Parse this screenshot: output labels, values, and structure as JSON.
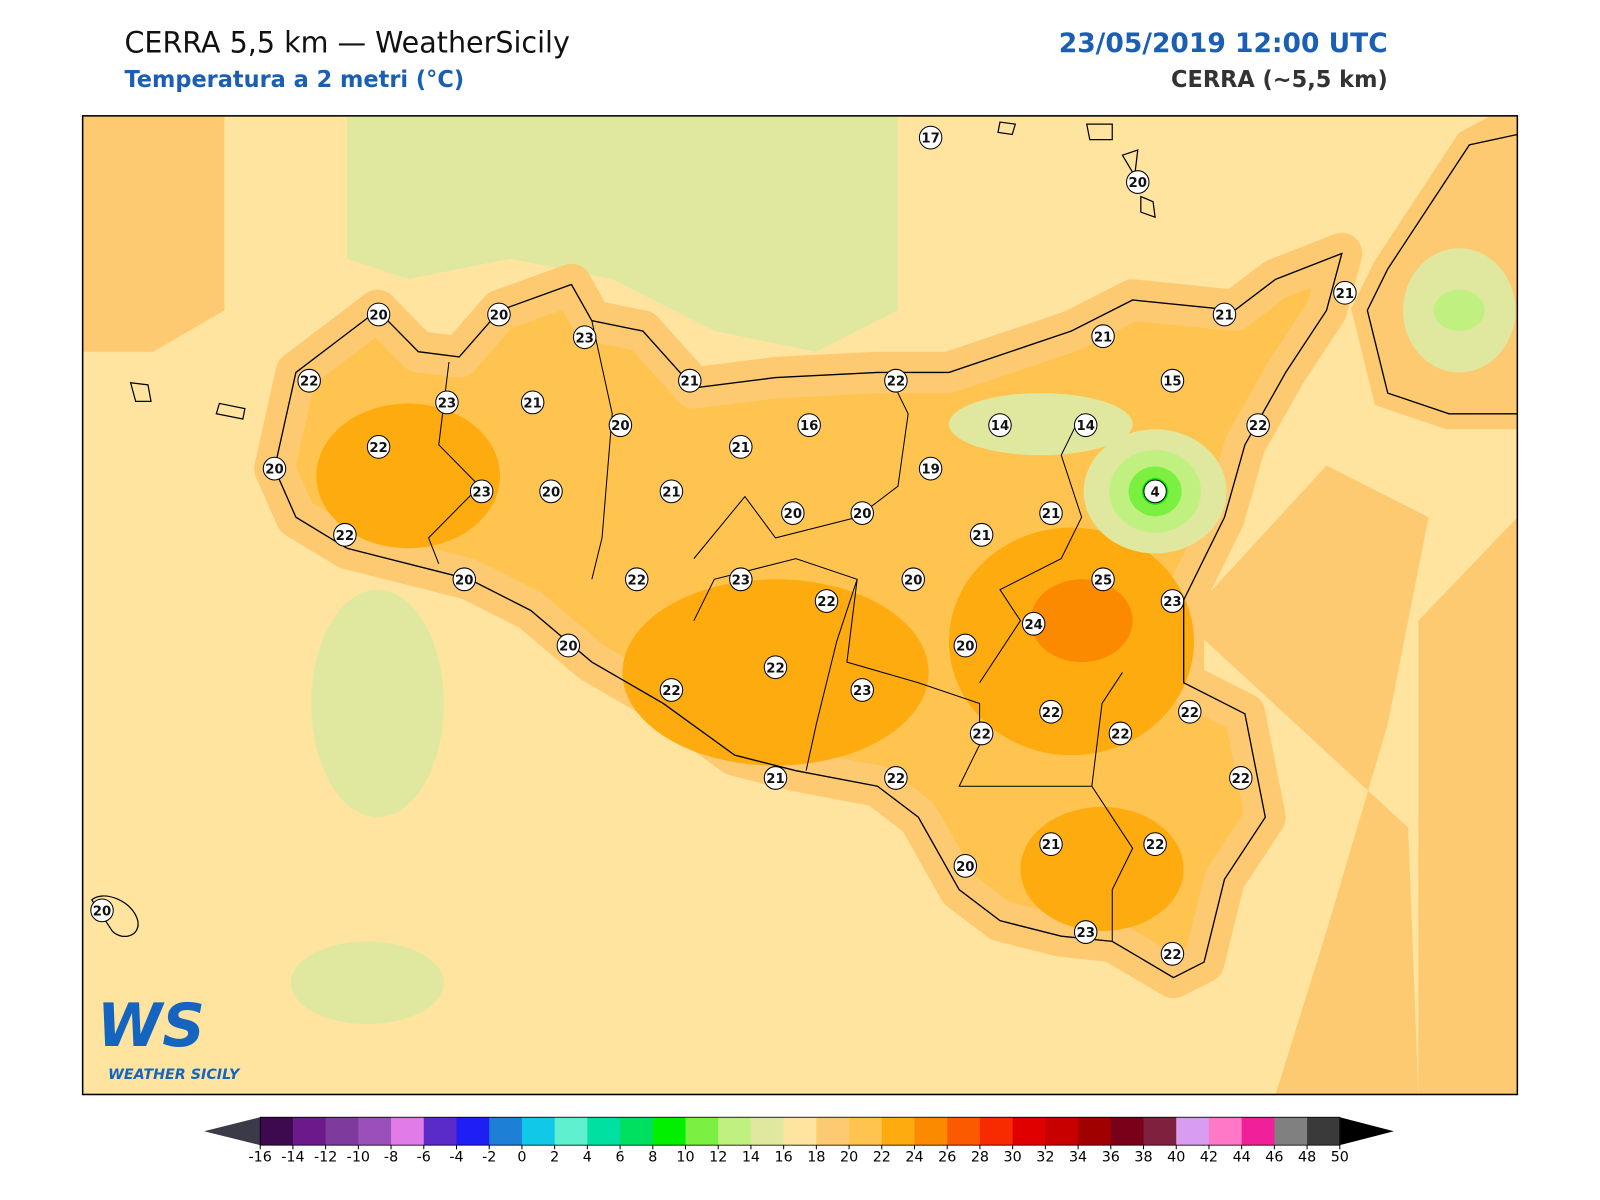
{
  "header": {
    "title": "CERRA 5,5 km — WeatherSicily",
    "subtitle": "Temperatura a 2 metri (°C)",
    "datetime": "23/05/2019 12:00 UTC",
    "model": "CERRA (~5,5 km)"
  },
  "logo": {
    "mark": "WS",
    "name": "WEATHER SICILY"
  },
  "stations": [
    17,
    20,
    20,
    20,
    23,
    21,
    21,
    21,
    22,
    23,
    21,
    21,
    22,
    15,
    20,
    16,
    14,
    14,
    22,
    22,
    21,
    20,
    19,
    4,
    23,
    20,
    21,
    20,
    20,
    21,
    22,
    21,
    20,
    22,
    23,
    20,
    25,
    22,
    23,
    24,
    20,
    20,
    22,
    22,
    23,
    22,
    22,
    22,
    22,
    21,
    22,
    22,
    20,
    21,
    22,
    23,
    22,
    20
  ],
  "colorbar": {
    "ticks": [
      -16,
      -14,
      -12,
      -10,
      -8,
      -6,
      -4,
      -2,
      0,
      2,
      4,
      6,
      8,
      10,
      12,
      14,
      16,
      18,
      20,
      22,
      24,
      26,
      28,
      30,
      32,
      34,
      36,
      38,
      40,
      42,
      44,
      46,
      48,
      50
    ],
    "colors": [
      "#3d0a4f",
      "#6a1a8a",
      "#7f3a9e",
      "#9b4fb8",
      "#e07be8",
      "#5a2bc8",
      "#1f1ff5",
      "#1e7fd6",
      "#10c8e8",
      "#5ff0d0",
      "#00e0a0",
      "#00e060",
      "#00f000",
      "#7cf040",
      "#c0f080",
      "#e0e8a0",
      "#ffe4a0",
      "#fdca72",
      "#fec44f",
      "#fdab0f",
      "#fc8a00",
      "#fb5a00",
      "#f82a00",
      "#e00000",
      "#c80000",
      "#a00000",
      "#780018",
      "#80203f",
      "#d89cf0",
      "#ff78c8",
      "#f0209a",
      "#808080",
      "#3a3a3a"
    ],
    "under_color": "#3a3a48",
    "over_color": "#000000"
  }
}
